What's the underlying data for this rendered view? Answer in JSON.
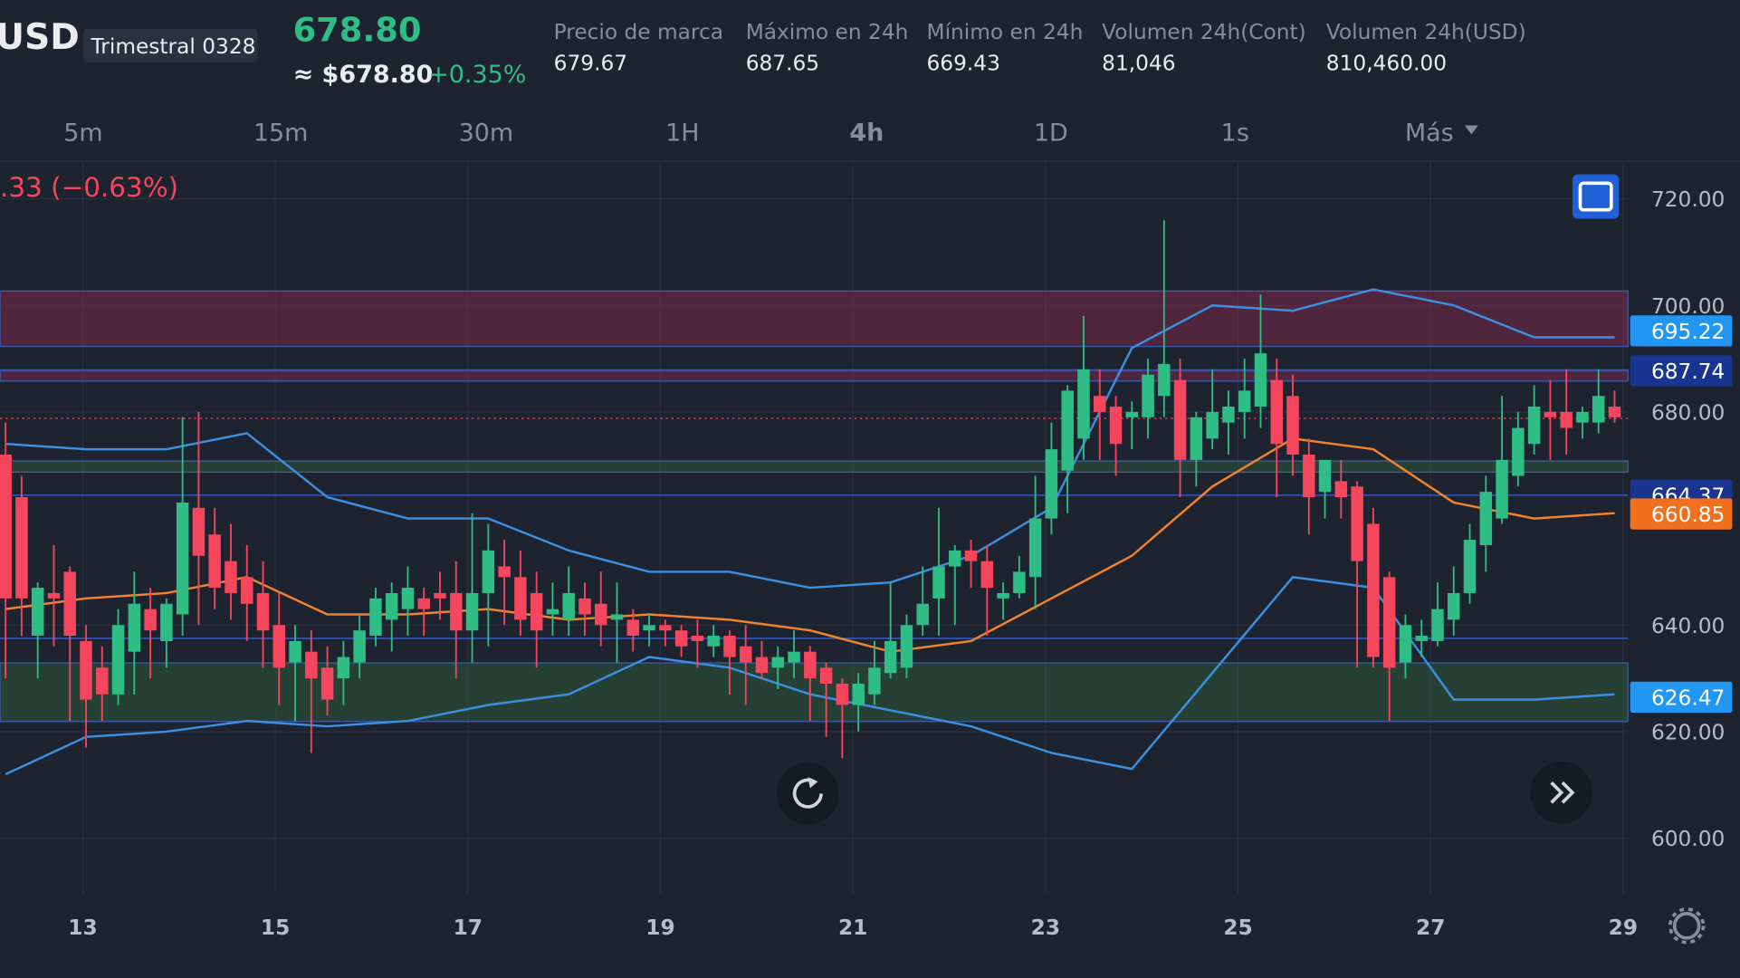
{
  "header": {
    "symbol": "USD",
    "contract": "Trimestral 0328",
    "last_price": "678.80",
    "fiat_price": "≈ $678.80",
    "change": "+0.35%",
    "stats": [
      {
        "label": "Precio de marca",
        "value": "679.67"
      },
      {
        "label": "Máximo en 24h",
        "value": "687.65"
      },
      {
        "label": "Mínimo en 24h",
        "value": "669.43"
      },
      {
        "label": "Volumen 24h(Cont)",
        "value": "81,046"
      },
      {
        "label": "Volumen 24h(USD)",
        "value": "810,460.00"
      }
    ]
  },
  "timeframes": [
    "5m",
    "15m",
    "30m",
    "1H",
    "4h",
    "1D",
    "1s",
    "Más"
  ],
  "active_timeframe": 4,
  "chart_data": {
    "type": "candlestick",
    "change_text": ".33 (−0.63%)",
    "ylim": [
      589.6,
      727.1
    ],
    "xlim": [
      12.14,
      29.05
    ],
    "yticks": [
      {
        "value": 600,
        "label": "600.00"
      },
      {
        "value": 620,
        "label": "620.00"
      },
      {
        "value": 640,
        "label": "640.00"
      },
      {
        "value": 680,
        "label": "680.00"
      },
      {
        "value": 700,
        "label": "700.00"
      },
      {
        "value": 720,
        "label": "720.00"
      }
    ],
    "xticks": [
      13,
      15,
      17,
      19,
      21,
      23,
      25,
      27,
      29
    ],
    "up_color": "#2ebd85",
    "down_color": "#f6465d",
    "candles": [
      [
        672,
        678,
        630,
        645
      ],
      [
        664,
        668,
        638,
        645
      ],
      [
        638,
        648,
        630,
        647
      ],
      [
        646,
        655,
        636,
        645
      ],
      [
        650,
        651,
        622,
        638
      ],
      [
        637,
        640,
        617,
        626
      ],
      [
        632,
        636,
        622,
        627
      ],
      [
        627,
        643,
        625,
        640
      ],
      [
        635,
        650,
        627,
        644
      ],
      [
        643,
        647,
        630,
        639
      ],
      [
        637,
        645,
        632,
        644
      ],
      [
        642,
        679,
        638,
        663
      ],
      [
        662,
        680,
        640,
        653
      ],
      [
        657,
        662,
        643,
        647
      ],
      [
        652,
        659,
        641,
        646
      ],
      [
        649,
        655,
        637,
        644
      ],
      [
        646,
        652,
        632,
        639
      ],
      [
        640,
        646,
        625,
        632
      ],
      [
        633,
        640,
        622,
        637
      ],
      [
        635,
        639,
        616,
        630
      ],
      [
        632,
        636,
        623,
        626
      ],
      [
        630,
        637,
        625,
        634
      ],
      [
        633,
        642,
        630,
        639
      ],
      [
        638,
        647,
        636,
        645
      ],
      [
        641,
        648,
        635,
        646
      ],
      [
        643,
        651,
        638,
        647
      ],
      [
        645,
        647,
        638,
        643
      ],
      [
        646,
        650,
        641,
        645
      ],
      [
        646,
        652,
        630,
        639
      ],
      [
        639,
        661,
        633,
        646
      ],
      [
        646,
        659,
        636,
        654
      ],
      [
        651,
        656,
        640,
        649
      ],
      [
        649,
        654,
        638,
        641
      ],
      [
        646,
        650,
        632,
        639
      ],
      [
        642,
        648,
        638,
        643
      ],
      [
        641,
        651,
        638,
        646
      ],
      [
        645,
        648,
        638,
        642
      ],
      [
        644,
        650,
        636,
        640
      ],
      [
        641,
        648,
        633,
        642
      ],
      [
        641,
        643,
        635,
        638
      ],
      [
        639,
        642,
        636,
        640
      ],
      [
        640,
        641,
        636,
        639
      ],
      [
        639,
        640,
        634,
        636
      ],
      [
        638,
        641,
        632,
        637
      ],
      [
        636,
        640,
        634,
        638
      ],
      [
        638,
        639,
        627,
        634
      ],
      [
        636,
        640,
        625,
        633
      ],
      [
        634,
        637,
        630,
        631
      ],
      [
        632,
        636,
        628,
        634
      ],
      [
        633,
        639,
        630,
        635
      ],
      [
        635,
        636,
        622,
        630
      ],
      [
        632,
        633,
        619,
        629
      ],
      [
        629,
        630,
        615,
        625
      ],
      [
        625,
        631,
        620,
        629
      ],
      [
        627,
        637,
        625,
        632
      ],
      [
        631,
        648,
        630,
        637
      ],
      [
        632,
        642,
        630,
        640
      ],
      [
        640,
        651,
        638,
        644
      ],
      [
        645,
        662,
        638,
        651
      ],
      [
        651,
        655,
        640,
        654
      ],
      [
        654,
        656,
        647,
        652
      ],
      [
        652,
        655,
        638,
        647
      ],
      [
        645,
        648,
        641,
        646
      ],
      [
        646,
        653,
        645,
        650
      ],
      [
        649,
        668,
        643,
        660
      ],
      [
        660,
        678,
        657,
        673
      ],
      [
        669,
        685,
        661,
        684
      ],
      [
        675,
        698,
        671,
        688
      ],
      [
        683,
        688,
        671,
        680
      ],
      [
        681,
        683,
        668,
        674
      ],
      [
        679,
        682,
        673,
        680
      ],
      [
        679,
        690,
        675,
        687
      ],
      [
        683,
        716,
        679,
        689
      ],
      [
        686,
        690,
        664,
        671
      ],
      [
        671,
        680,
        666,
        679
      ],
      [
        675,
        688,
        673,
        680
      ],
      [
        678,
        684,
        672,
        681
      ],
      [
        680,
        690,
        675,
        684
      ],
      [
        681,
        702,
        677,
        691
      ],
      [
        686,
        690,
        664,
        674
      ],
      [
        683,
        687,
        668,
        672
      ],
      [
        672,
        675,
        657,
        664
      ],
      [
        665,
        670,
        660,
        671
      ],
      [
        667,
        671,
        660,
        664
      ],
      [
        666,
        667,
        632,
        652
      ],
      [
        659,
        662,
        632,
        634
      ],
      [
        649,
        650,
        622,
        632
      ],
      [
        633,
        642,
        630,
        640
      ],
      [
        637,
        641,
        634,
        638
      ],
      [
        637,
        648,
        636,
        643
      ],
      [
        641,
        651,
        638,
        646
      ],
      [
        646,
        659,
        644,
        656
      ],
      [
        655,
        668,
        650,
        665
      ],
      [
        660,
        683,
        659,
        671
      ],
      [
        668,
        680,
        666,
        677
      ],
      [
        674,
        685,
        672,
        681
      ],
      [
        680,
        686,
        671,
        679
      ],
      [
        680,
        688,
        672,
        677
      ],
      [
        678,
        681,
        675,
        680
      ],
      [
        678,
        688,
        676,
        683
      ],
      [
        681,
        684,
        678,
        679
      ]
    ],
    "bands": [
      {
        "color": "#3d8fe0",
        "values": [
          674,
          673,
          673,
          676,
          664,
          660,
          660,
          654,
          650,
          650,
          647,
          648,
          653,
          662,
          692,
          700,
          699,
          703,
          700,
          694,
          694
        ]
      },
      {
        "color": "#f0832f",
        "values": [
          643,
          645,
          646,
          649,
          642,
          642,
          643,
          641,
          642,
          641,
          639,
          635,
          637,
          645,
          653,
          666,
          675,
          673,
          663,
          660,
          661
        ]
      },
      {
        "color": "#3d8fe0",
        "values": [
          612,
          619,
          620,
          622,
          621,
          622,
          625,
          627,
          634,
          632,
          627,
          624,
          621,
          616,
          613,
          631,
          649,
          647,
          626,
          626,
          627
        ]
      }
    ],
    "zones": [
      {
        "range": [
          692.3,
          702.7
        ],
        "color": "#7a2a4a"
      },
      {
        "range": [
          685.8,
          687.9
        ],
        "color": "#7a2a4a"
      },
      {
        "range": [
          668.7,
          670.8
        ],
        "color": "#2d5a3c"
      },
      {
        "range": [
          621.9,
          632.9
        ],
        "color": "#2d5a3c"
      }
    ],
    "levels": [
      687.74,
      664.37,
      637.5
    ],
    "last_price": 678.8,
    "badges": [
      {
        "value": 695.22,
        "color": "#2196f3"
      },
      {
        "value": 687.74,
        "color": "#1a3590"
      },
      {
        "value": 664.37,
        "color": "#1a3590"
      },
      {
        "value": 660.85,
        "color": "#f0701e"
      },
      {
        "value": 626.47,
        "color": "#2196f3"
      }
    ]
  }
}
